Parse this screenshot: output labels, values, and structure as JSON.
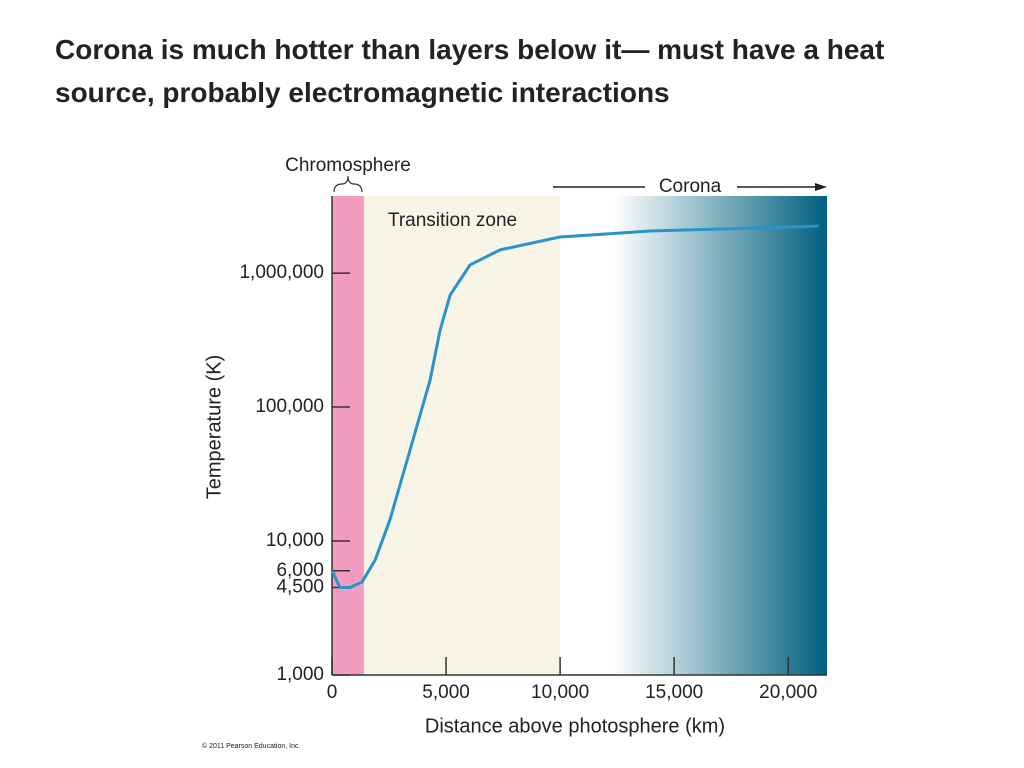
{
  "chart_data": {
    "type": "line",
    "title": "Corona is much hotter than layers below it— must have a heat source, probably electromagnetic interactions",
    "x_label": "Distance above photosphere (km)",
    "y_label": "Temperature (K)",
    "credit": "© 2011 Pearson Education, Inc.",
    "y_scale": "log",
    "xlim": [
      0,
      21700
    ],
    "ylim": [
      1000,
      3760000
    ],
    "xticks": [
      0,
      {
        "value": 5000,
        "label": "5,000"
      },
      {
        "value": 10000,
        "label": "10,000"
      },
      {
        "value": 15000,
        "label": "15,000"
      },
      {
        "value": 20000,
        "label": "20,000"
      }
    ],
    "yticks": [
      {
        "value": 1000,
        "label": "1,000"
      },
      {
        "value": 4500,
        "label": "4,500"
      },
      {
        "value": 6000,
        "label": "6,000"
      },
      {
        "value": 10000,
        "label": "10,000"
      },
      {
        "value": 100000,
        "label": "100,000"
      },
      {
        "value": 1000000,
        "label": "1,000,000"
      }
    ],
    "regions": [
      {
        "name": "Chromosphere",
        "xlim": [
          0,
          1400
        ],
        "color": "#f19cc0"
      },
      {
        "name": "Transition zone",
        "xlim": [
          1400,
          10000
        ],
        "color": "#f8f4e6"
      },
      {
        "name": "Corona",
        "xlim": [
          10000,
          21700
        ],
        "color": "#00607f"
      }
    ],
    "series": [
      {
        "color": "#2a93c9",
        "x": [
          0,
          350,
          790,
          1320,
          1890,
          2540,
          3420,
          4300,
          4740,
          5180,
          6050,
          7370,
          10000,
          13950,
          21320
        ],
        "values": [
          6000,
          4500,
          4500,
          4950,
          7200,
          14400,
          47700,
          159000,
          376000,
          686000,
          1150000,
          1490000,
          1860000,
          2060000,
          2240000
        ]
      }
    ]
  }
}
